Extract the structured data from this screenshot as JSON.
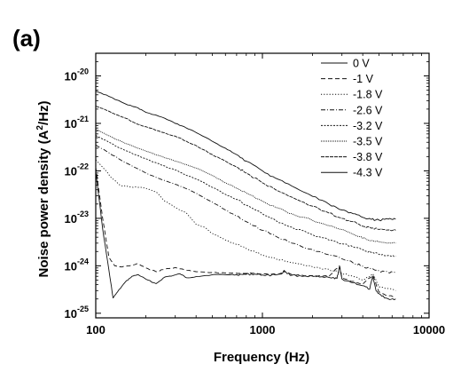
{
  "panel_label": "(a)",
  "chart_data": {
    "type": "line",
    "xlabel": "Frequency (Hz)",
    "ylabel_parts": [
      "Noise power density (A",
      "2",
      "/Hz)"
    ],
    "xscale": "log",
    "yscale": "log",
    "xlim": [
      100,
      10000
    ],
    "ylim": [
      8e-26,
      3e-20
    ],
    "x_ticks": [
      {
        "value": 100,
        "label": "100"
      },
      {
        "value": 1000,
        "label": "1000"
      },
      {
        "value": 10000,
        "label": "10000"
      }
    ],
    "y_ticks": [
      {
        "value": 1e-25,
        "mantissa": "10",
        "exp": "-25"
      },
      {
        "value": 1e-24,
        "mantissa": "10",
        "exp": "-24"
      },
      {
        "value": 1e-23,
        "mantissa": "10",
        "exp": "-23"
      },
      {
        "value": 1e-22,
        "mantissa": "10",
        "exp": "-22"
      },
      {
        "value": 1e-21,
        "mantissa": "10",
        "exp": "-21"
      },
      {
        "value": 1e-20,
        "mantissa": "10",
        "exp": "-20"
      }
    ],
    "legend_position": "top-right",
    "series": [
      {
        "name": "0 V",
        "dash": "none",
        "points": [
          [
            100,
            1e-22
          ],
          [
            110,
            6e-24
          ],
          [
            120,
            8e-25
          ],
          [
            127,
            2.1e-25
          ],
          [
            135,
            2.8e-25
          ],
          [
            150,
            4.5e-25
          ],
          [
            165,
            6e-25
          ],
          [
            180,
            6.5e-25
          ],
          [
            200,
            5.2e-25
          ],
          [
            230,
            4.2e-25
          ],
          [
            260,
            5.8e-25
          ],
          [
            290,
            6.2e-25
          ],
          [
            320,
            6.8e-25
          ],
          [
            350,
            5.6e-25
          ],
          [
            400,
            5.9e-25
          ],
          [
            500,
            6.5e-25
          ],
          [
            600,
            6.5e-25
          ],
          [
            700,
            6.5e-25
          ],
          [
            800,
            6.6e-25
          ],
          [
            900,
            6.7e-25
          ],
          [
            1000,
            6.4e-25
          ],
          [
            1200,
            6.4e-25
          ],
          [
            1350,
            7.5e-25
          ],
          [
            1500,
            6.3e-25
          ],
          [
            1800,
            6.1e-25
          ],
          [
            2200,
            5.8e-25
          ],
          [
            2600,
            5.5e-25
          ],
          [
            2800,
            5.4e-25
          ],
          [
            2900,
            9.5e-25
          ],
          [
            3000,
            5.3e-25
          ],
          [
            3500,
            4.4e-25
          ],
          [
            4000,
            3.8e-25
          ],
          [
            4400,
            3.2e-25
          ],
          [
            4600,
            6e-25
          ],
          [
            4800,
            3e-25
          ],
          [
            5200,
            2.3e-25
          ],
          [
            5700,
            2e-25
          ],
          [
            6300,
            2e-25
          ]
        ]
      },
      {
        "name": "-1 V",
        "dash": "5,3",
        "points": [
          [
            100,
            1.2e-22
          ],
          [
            110,
            1e-23
          ],
          [
            120,
            1.5e-24
          ],
          [
            130,
            1e-24
          ],
          [
            140,
            9.5e-25
          ],
          [
            160,
            1e-24
          ],
          [
            180,
            1.1e-24
          ],
          [
            200,
            9e-25
          ],
          [
            230,
            7.5e-25
          ],
          [
            260,
            8.5e-25
          ],
          [
            300,
            9.2e-25
          ],
          [
            340,
            8.2e-25
          ],
          [
            400,
            7.5e-25
          ],
          [
            500,
            7.2e-25
          ],
          [
            600,
            7e-25
          ],
          [
            800,
            6.9e-25
          ],
          [
            1000,
            6.8e-25
          ],
          [
            1300,
            6.7e-25
          ],
          [
            1350,
            8e-25
          ],
          [
            1500,
            6.5e-25
          ],
          [
            2000,
            6.2e-25
          ],
          [
            2500,
            5.9e-25
          ],
          [
            2900,
            1e-24
          ],
          [
            3000,
            5.6e-25
          ],
          [
            3500,
            4.7e-25
          ],
          [
            4000,
            4.1e-25
          ],
          [
            4600,
            6.4e-25
          ],
          [
            5000,
            2.8e-25
          ],
          [
            5700,
            2.3e-25
          ],
          [
            6300,
            2.3e-25
          ]
        ]
      },
      {
        "name": "-1.8 V",
        "dash": "1.2,2",
        "points": [
          [
            100,
            1.7e-22
          ],
          [
            110,
            1.2e-22
          ],
          [
            125,
            7e-23
          ],
          [
            140,
            5e-23
          ],
          [
            160,
            4.6e-23
          ],
          [
            180,
            4.5e-23
          ],
          [
            200,
            4.3e-23
          ],
          [
            230,
            3.6e-23
          ],
          [
            260,
            2.3e-23
          ],
          [
            300,
            1.7e-23
          ],
          [
            350,
            1.3e-23
          ],
          [
            400,
            7.5e-24
          ],
          [
            450,
            6.5e-24
          ],
          [
            500,
            4.8e-24
          ],
          [
            600,
            3.5e-24
          ],
          [
            700,
            2.8e-24
          ],
          [
            800,
            2.3e-24
          ],
          [
            900,
            2e-24
          ],
          [
            1000,
            1.7e-24
          ],
          [
            1200,
            1.4e-24
          ],
          [
            1500,
            1.15e-24
          ],
          [
            1800,
            1e-24
          ],
          [
            2200,
            9e-25
          ],
          [
            2700,
            7.8e-25
          ],
          [
            3000,
            7e-25
          ],
          [
            3500,
            6e-25
          ],
          [
            4000,
            5e-25
          ],
          [
            4600,
            6.8e-25
          ],
          [
            5000,
            3.6e-25
          ],
          [
            6300,
            3e-25
          ]
        ]
      },
      {
        "name": "-2.6 V",
        "dash": "5,2,1,2",
        "points": [
          [
            100,
            3.5e-22
          ],
          [
            120,
            2.4e-22
          ],
          [
            150,
            1.5e-22
          ],
          [
            200,
            9e-23
          ],
          [
            250,
            6.5e-23
          ],
          [
            300,
            5.2e-23
          ],
          [
            350,
            4.2e-23
          ],
          [
            400,
            3.4e-23
          ],
          [
            500,
            2.2e-23
          ],
          [
            600,
            1.5e-23
          ],
          [
            700,
            1.1e-23
          ],
          [
            800,
            8.5e-24
          ],
          [
            1000,
            5.6e-24
          ],
          [
            1200,
            4.2e-24
          ],
          [
            1500,
            3e-24
          ],
          [
            2000,
            2.2e-24
          ],
          [
            2500,
            1.7e-24
          ],
          [
            3000,
            1.4e-24
          ],
          [
            3500,
            1.15e-24
          ],
          [
            4000,
            9.8e-25
          ],
          [
            4500,
            8.5e-25
          ],
          [
            5000,
            7.8e-25
          ],
          [
            5700,
            7.2e-25
          ],
          [
            6300,
            7.2e-25
          ]
        ]
      },
      {
        "name": "-3.2 V",
        "dash": "2,1.5",
        "points": [
          [
            100,
            5.6e-22
          ],
          [
            120,
            4e-22
          ],
          [
            150,
            2.7e-22
          ],
          [
            200,
            1.8e-22
          ],
          [
            250,
            1.3e-22
          ],
          [
            300,
            1.05e-22
          ],
          [
            350,
            8e-23
          ],
          [
            400,
            6.8e-23
          ],
          [
            500,
            4.5e-23
          ],
          [
            600,
            3.2e-23
          ],
          [
            700,
            2.5e-23
          ],
          [
            800,
            1.9e-23
          ],
          [
            1000,
            1.25e-23
          ],
          [
            1200,
            9e-24
          ],
          [
            1500,
            6.5e-24
          ],
          [
            2000,
            4.5e-24
          ],
          [
            2500,
            3.5e-24
          ],
          [
            3000,
            2.9e-24
          ],
          [
            3500,
            2.5e-24
          ],
          [
            4000,
            2.2e-24
          ],
          [
            4500,
            1.9e-24
          ],
          [
            5000,
            1.75e-24
          ],
          [
            5700,
            1.65e-24
          ],
          [
            6300,
            1.6e-24
          ]
        ]
      },
      {
        "name": "-3.5 V",
        "dash": "1,1",
        "points": [
          [
            100,
            7.5e-22
          ],
          [
            120,
            5.5e-22
          ],
          [
            150,
            3.8e-22
          ],
          [
            200,
            2.6e-22
          ],
          [
            250,
            2e-22
          ],
          [
            300,
            1.6e-22
          ],
          [
            350,
            1.35e-22
          ],
          [
            400,
            1.15e-22
          ],
          [
            500,
            8e-23
          ],
          [
            600,
            5.6e-23
          ],
          [
            700,
            4.3e-23
          ],
          [
            800,
            3.4e-23
          ],
          [
            1000,
            2.3e-23
          ],
          [
            1200,
            1.7e-23
          ],
          [
            1500,
            1.25e-23
          ],
          [
            2000,
            9e-24
          ],
          [
            2500,
            7e-24
          ],
          [
            3000,
            5.8e-24
          ],
          [
            3500,
            4.6e-24
          ],
          [
            4000,
            3.8e-24
          ],
          [
            4500,
            3.4e-24
          ],
          [
            5000,
            3.2e-24
          ],
          [
            5700,
            3e-24
          ],
          [
            6300,
            3e-24
          ]
        ]
      },
      {
        "name": "-3.8 V",
        "dash": "4,1",
        "points": [
          [
            100,
            2.3e-21
          ],
          [
            120,
            1.8e-21
          ],
          [
            150,
            1.3e-21
          ],
          [
            180,
            9.5e-22
          ],
          [
            200,
            8.5e-22
          ],
          [
            250,
            6.5e-22
          ],
          [
            300,
            5.4e-22
          ],
          [
            350,
            4.2e-22
          ],
          [
            400,
            3.4e-22
          ],
          [
            500,
            2.2e-22
          ],
          [
            600,
            1.6e-22
          ],
          [
            700,
            1.2e-22
          ],
          [
            800,
            9e-23
          ],
          [
            1000,
            5.6e-23
          ],
          [
            1200,
            4e-23
          ],
          [
            1500,
            2.8e-23
          ],
          [
            2000,
            1.8e-23
          ],
          [
            2500,
            1.3e-23
          ],
          [
            3000,
            1e-23
          ],
          [
            3500,
            8.5e-24
          ],
          [
            4000,
            6.8e-24
          ],
          [
            4500,
            6.2e-24
          ],
          [
            5000,
            5.8e-24
          ],
          [
            5700,
            5.7e-24
          ],
          [
            6300,
            5.6e-24
          ]
        ]
      },
      {
        "name": "-4.3 V",
        "dash": "none",
        "points": [
          [
            100,
            4.8e-21
          ],
          [
            120,
            3.7e-21
          ],
          [
            150,
            2.6e-21
          ],
          [
            180,
            2.1e-21
          ],
          [
            200,
            1.7e-21
          ],
          [
            250,
            1.35e-21
          ],
          [
            300,
            1e-21
          ],
          [
            350,
            8e-22
          ],
          [
            400,
            6.4e-22
          ],
          [
            500,
            4.2e-22
          ],
          [
            600,
            3e-22
          ],
          [
            700,
            2.2e-22
          ],
          [
            800,
            1.6e-22
          ],
          [
            1000,
            1e-22
          ],
          [
            1200,
            7e-23
          ],
          [
            1500,
            4.8e-23
          ],
          [
            2000,
            2.9e-23
          ],
          [
            2500,
            2e-23
          ],
          [
            3000,
            1.5e-23
          ],
          [
            3500,
            1.25e-23
          ],
          [
            4000,
            1.05e-23
          ],
          [
            4500,
            9.5e-24
          ],
          [
            5000,
            9.2e-24
          ],
          [
            5700,
            9.6e-24
          ],
          [
            6300,
            9.6e-24
          ]
        ]
      }
    ]
  }
}
